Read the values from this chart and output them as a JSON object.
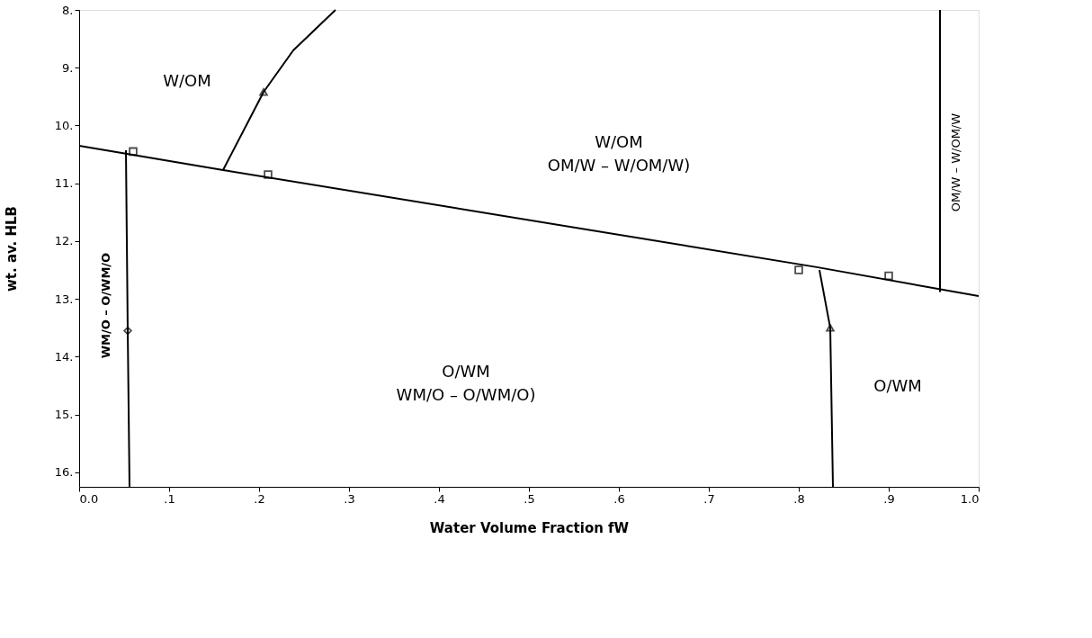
{
  "chart_data": {
    "type": "line",
    "xlabel": "Water Volume Fraction fW",
    "ylabel": "wt. av. HLB",
    "xlim": [
      0,
      1.0
    ],
    "ylim": [
      16.25,
      8
    ],
    "xticks": [
      {
        "value": 0,
        "label": "0.0"
      },
      {
        "value": 0.1,
        "label": ".1"
      },
      {
        "value": 0.2,
        "label": ".2"
      },
      {
        "value": 0.3,
        "label": ".3"
      },
      {
        "value": 0.4,
        "label": ".4"
      },
      {
        "value": 0.5,
        "label": ".5"
      },
      {
        "value": 0.6,
        "label": ".6"
      },
      {
        "value": 0.7,
        "label": ".7"
      },
      {
        "value": 0.8,
        "label": ".8"
      },
      {
        "value": 0.9,
        "label": ".9"
      },
      {
        "value": 1.0,
        "label": "1.0"
      }
    ],
    "yticks": [
      {
        "value": 8,
        "label": "8."
      },
      {
        "value": 9,
        "label": "9."
      },
      {
        "value": 10,
        "label": "10."
      },
      {
        "value": 11,
        "label": "11."
      },
      {
        "value": 12,
        "label": "12."
      },
      {
        "value": 13,
        "label": "13."
      },
      {
        "value": 14,
        "label": "14."
      },
      {
        "value": 15,
        "label": "15."
      },
      {
        "value": 16,
        "label": "16."
      }
    ],
    "grid": false,
    "series": [
      {
        "color": "#000000",
        "marker": "none",
        "line_style": "solid",
        "x": [
          0,
          0.16,
          0.82,
          1.0
        ],
        "values": [
          10.35,
          10.77,
          12.45,
          12.95
        ]
      },
      {
        "color": "#000000",
        "marker": "none",
        "line_style": "solid",
        "x": [
          0.16,
          0.205,
          0.238,
          0.285
        ],
        "values": [
          10.77,
          9.42,
          8.7,
          8.0
        ]
      },
      {
        "color": "#000000",
        "marker": "none",
        "line_style": "solid",
        "x": [
          0.052,
          0.054,
          0.056
        ],
        "values": [
          10.43,
          13.55,
          16.25
        ]
      },
      {
        "color": "#000000",
        "marker": "none",
        "line_style": "solid",
        "x": [
          0.823,
          0.835,
          0.838
        ],
        "values": [
          12.5,
          13.5,
          16.25
        ]
      },
      {
        "color": "#000000",
        "marker": "none",
        "line_style": "solid",
        "x": [
          0.957,
          0.957
        ],
        "values": [
          8.0,
          12.88
        ]
      },
      {
        "type": "scatter",
        "color": "#000000",
        "marker": "square",
        "x": [
          0.06,
          0.21,
          0.8,
          0.9
        ],
        "values": [
          10.45,
          10.85,
          12.5,
          12.6
        ]
      },
      {
        "type": "scatter",
        "color": "#000000",
        "marker": "triangle",
        "x": [
          0.205,
          0.835
        ],
        "values": [
          9.42,
          13.5
        ]
      },
      {
        "type": "scatter",
        "color": "#000000",
        "marker": "diamond",
        "x": [
          0.054
        ],
        "values": [
          13.55
        ]
      }
    ],
    "annotations": [
      "W/OM",
      "W/OM\nOM/W – W/OM/W)",
      "O/WM\nWM/O – O/WM/O)",
      "WM/O – O/WM/O",
      "OM/W – W/OM/W",
      "O/WM"
    ]
  }
}
